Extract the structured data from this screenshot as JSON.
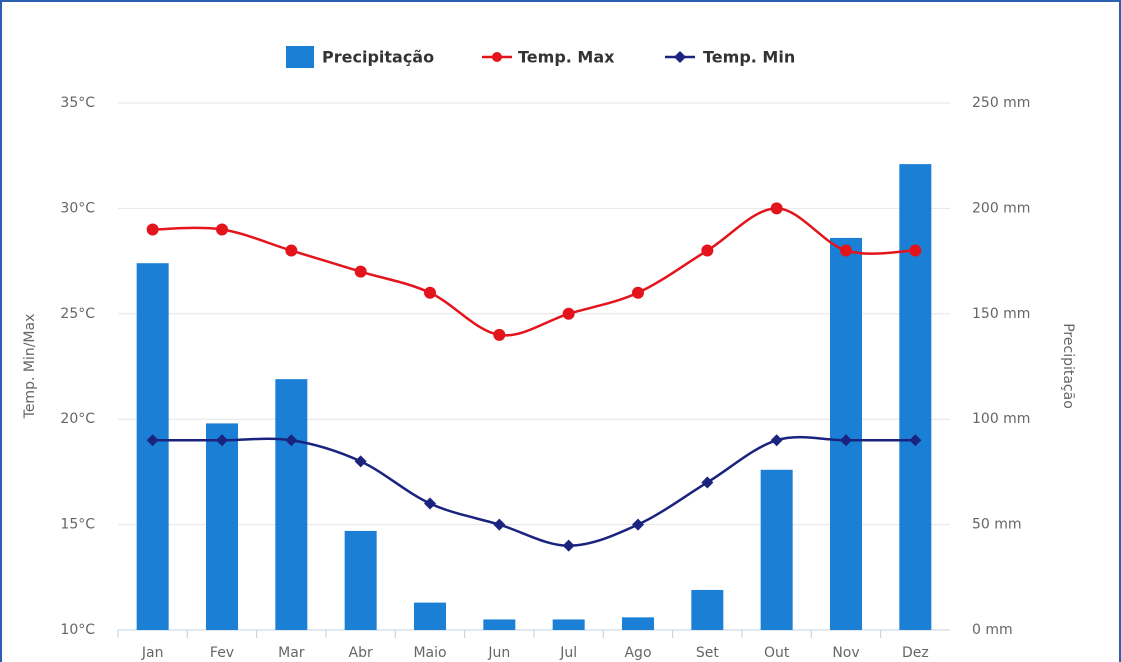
{
  "chart_data": {
    "type": "bar",
    "categories": [
      "Jan",
      "Fev",
      "Mar",
      "Abr",
      "Maio",
      "Jun",
      "Jul",
      "Ago",
      "Set",
      "Out",
      "Nov",
      "Dez"
    ],
    "series": [
      {
        "name": "Precipitação",
        "type": "bar",
        "axis": "y2",
        "color": "#1b7fd6",
        "values": [
          174,
          98,
          119,
          47,
          13,
          5,
          5,
          6,
          19,
          76,
          186,
          221
        ]
      },
      {
        "name": "Temp. Max",
        "type": "line",
        "color": "#e3141c",
        "values": [
          29,
          29,
          28,
          27,
          26,
          24,
          25,
          26,
          28,
          30,
          28,
          28
        ]
      },
      {
        "name": "Temp. Min",
        "type": "line",
        "color": "#1a237e",
        "values": [
          19,
          19,
          19,
          18,
          16,
          15,
          14,
          15,
          17,
          19,
          19,
          19
        ]
      }
    ],
    "y_label": "Temp. Min/Max",
    "y2_label": "Precipitação",
    "ylim": [
      10,
      35
    ],
    "yticks": [
      {
        "value": 10,
        "label": "10°C"
      },
      {
        "value": 15,
        "label": "15°C"
      },
      {
        "value": 20,
        "label": "20°C"
      },
      {
        "value": 25,
        "label": "25°C"
      },
      {
        "value": 30,
        "label": "30°C"
      },
      {
        "value": 35,
        "label": "35°C"
      }
    ],
    "y2lim": [
      0,
      250
    ],
    "y2ticks": [
      {
        "value": 0,
        "label": "0 mm"
      },
      {
        "value": 50,
        "label": "50 mm"
      },
      {
        "value": 100,
        "label": "100 mm"
      },
      {
        "value": 150,
        "label": "150 mm"
      },
      {
        "value": 200,
        "label": "200 mm"
      },
      {
        "value": 250,
        "label": "250 mm"
      }
    ],
    "grid": true,
    "legend": "top"
  }
}
